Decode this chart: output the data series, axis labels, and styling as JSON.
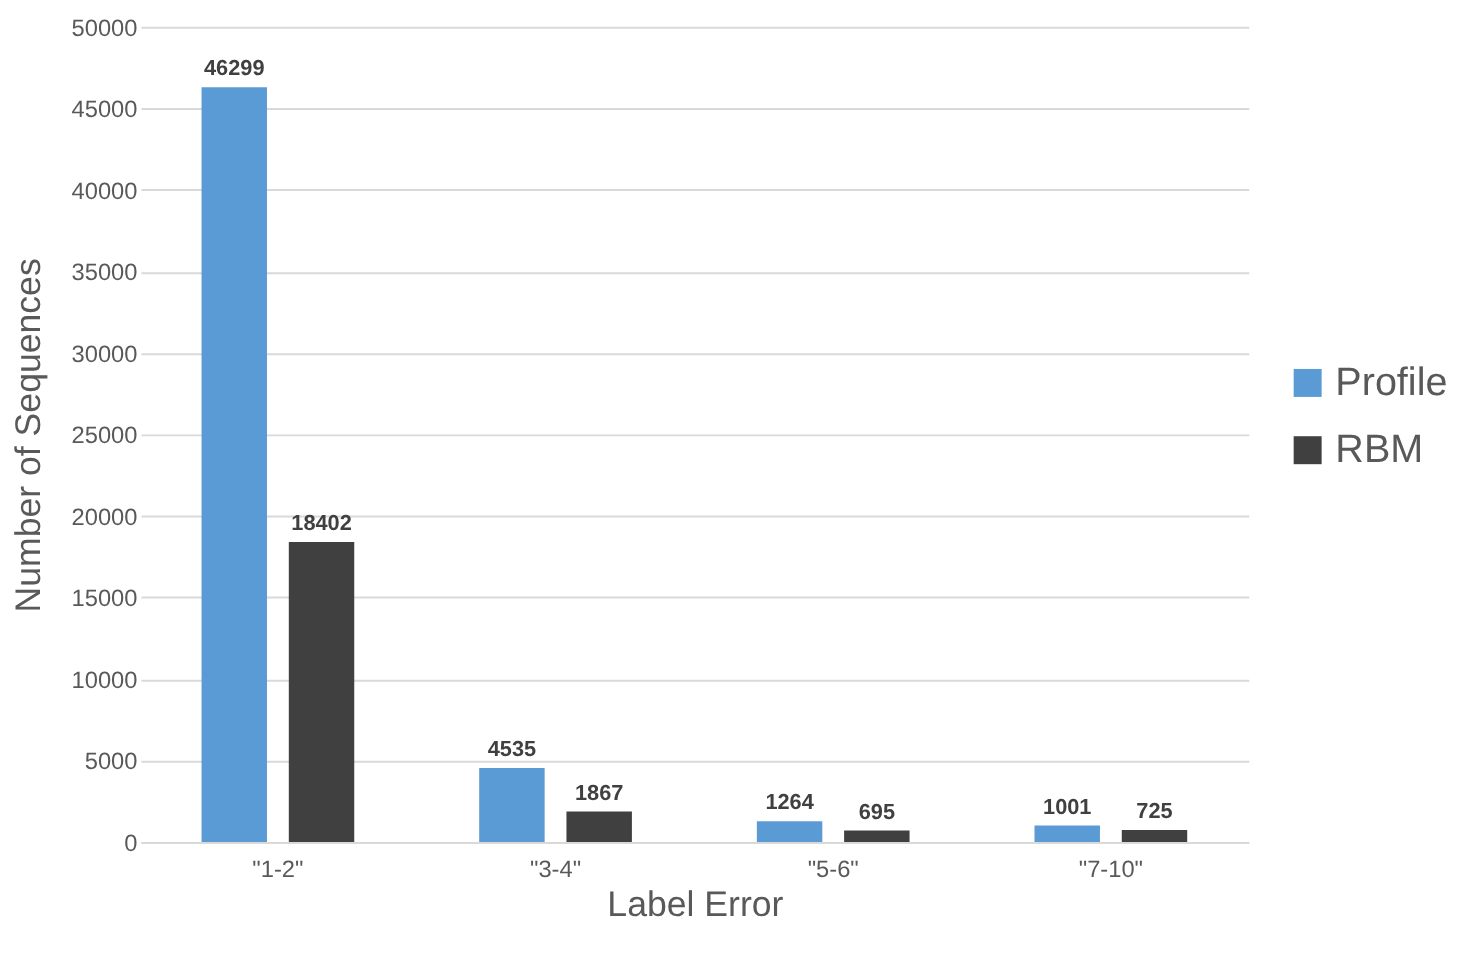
{
  "chart_data": {
    "type": "bar",
    "xlabel": "Label Error",
    "ylabel": "Number of Sequences",
    "categories": [
      "\"1-2\"",
      "\"3-4\"",
      "\"5-6\"",
      "\"7-10\""
    ],
    "series": [
      {
        "name": "Profile",
        "color": "#5b9bd5",
        "values": [
          46299,
          4535,
          1264,
          1001
        ]
      },
      {
        "name": "RBM",
        "color": "#404040",
        "values": [
          18402,
          1867,
          695,
          725
        ]
      }
    ],
    "ylim": [
      0,
      50000
    ],
    "yticks": [
      0,
      5000,
      10000,
      15000,
      20000,
      25000,
      30000,
      35000,
      40000,
      45000,
      50000
    ],
    "grid": "y",
    "legend": "right",
    "data_labels": true
  }
}
